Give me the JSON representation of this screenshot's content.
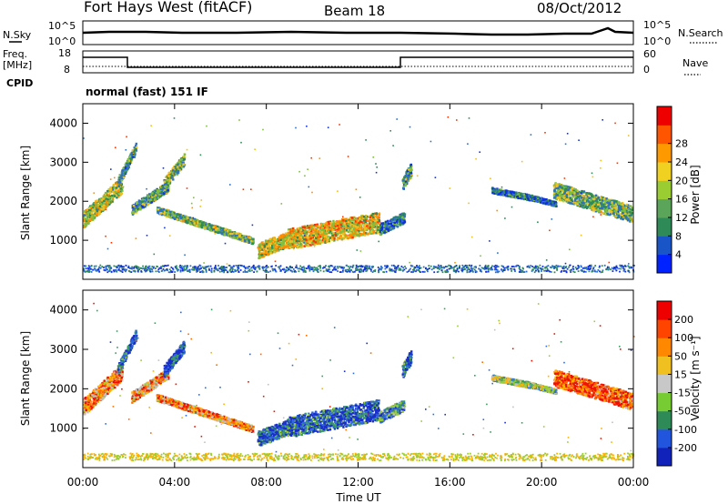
{
  "header": {
    "station": "Fort Hays West (fitACF)",
    "beam": "Beam 18",
    "date": "08/Oct/2012"
  },
  "top_panel": {
    "left_labels": [
      "N.Sky",
      "Freq.",
      "[MHz]",
      "CPID"
    ],
    "right_labels": [
      "N.Search",
      "Nave"
    ],
    "left_ticks": [
      "10^5",
      "10^0",
      "18",
      "8"
    ],
    "right_ticks": [
      "10^5",
      "10^0",
      "60",
      "0"
    ],
    "cpid_text": "normal (fast) 151 IF"
  },
  "chart_data": [
    {
      "type": "heatmap",
      "panel": "power",
      "ylabel": "Slant Range [km]",
      "xlabel": "",
      "ylim": [
        0,
        4500
      ],
      "xlim_hours": [
        0,
        24
      ],
      "y_ticks": [
        "1000",
        "2000",
        "3000",
        "4000"
      ],
      "colorbar": {
        "label": "Power [dB]",
        "ticks": [
          "4",
          "8",
          "12",
          "16",
          "20",
          "24",
          "28"
        ],
        "colors": [
          "#0022ff",
          "#1a55c8",
          "#2e8b57",
          "#5aa55a",
          "#9acd32",
          "#f0d020",
          "#ff9900",
          "#ff5500",
          "#ee0000"
        ]
      }
    },
    {
      "type": "heatmap",
      "panel": "velocity",
      "ylabel": "Slant Range [km]",
      "xlabel": "Time UT",
      "ylim": [
        0,
        4500
      ],
      "xlim_hours": [
        0,
        24
      ],
      "y_ticks": [
        "1000",
        "2000",
        "3000",
        "4000"
      ],
      "x_ticks": [
        "00:00",
        "04:00",
        "08:00",
        "12:00",
        "16:00",
        "20:00",
        "00:00"
      ],
      "colorbar": {
        "label": "Velocity [m s⁻¹]",
        "ticks": [
          "200",
          "100",
          "50",
          "15",
          "-15",
          "-50",
          "-100",
          "-200"
        ],
        "colors": [
          "#1122bb",
          "#2255dd",
          "#2e8b57",
          "#77cc33",
          "#c8c8c8",
          "#f0c020",
          "#ff8800",
          "#ff4400",
          "#ee0000"
        ]
      }
    }
  ],
  "palette": {
    "power": [
      "#1030e0",
      "#2e6fc8",
      "#2e8b57",
      "#7fbf3f",
      "#f0c020",
      "#ff8c00",
      "#ff3300"
    ],
    "velocity": [
      "#1a2ecc",
      "#2f6bd8",
      "#3c9b5f",
      "#9acd32",
      "#c0c0c0",
      "#ffb000",
      "#ff6a00",
      "#ee1100"
    ]
  }
}
